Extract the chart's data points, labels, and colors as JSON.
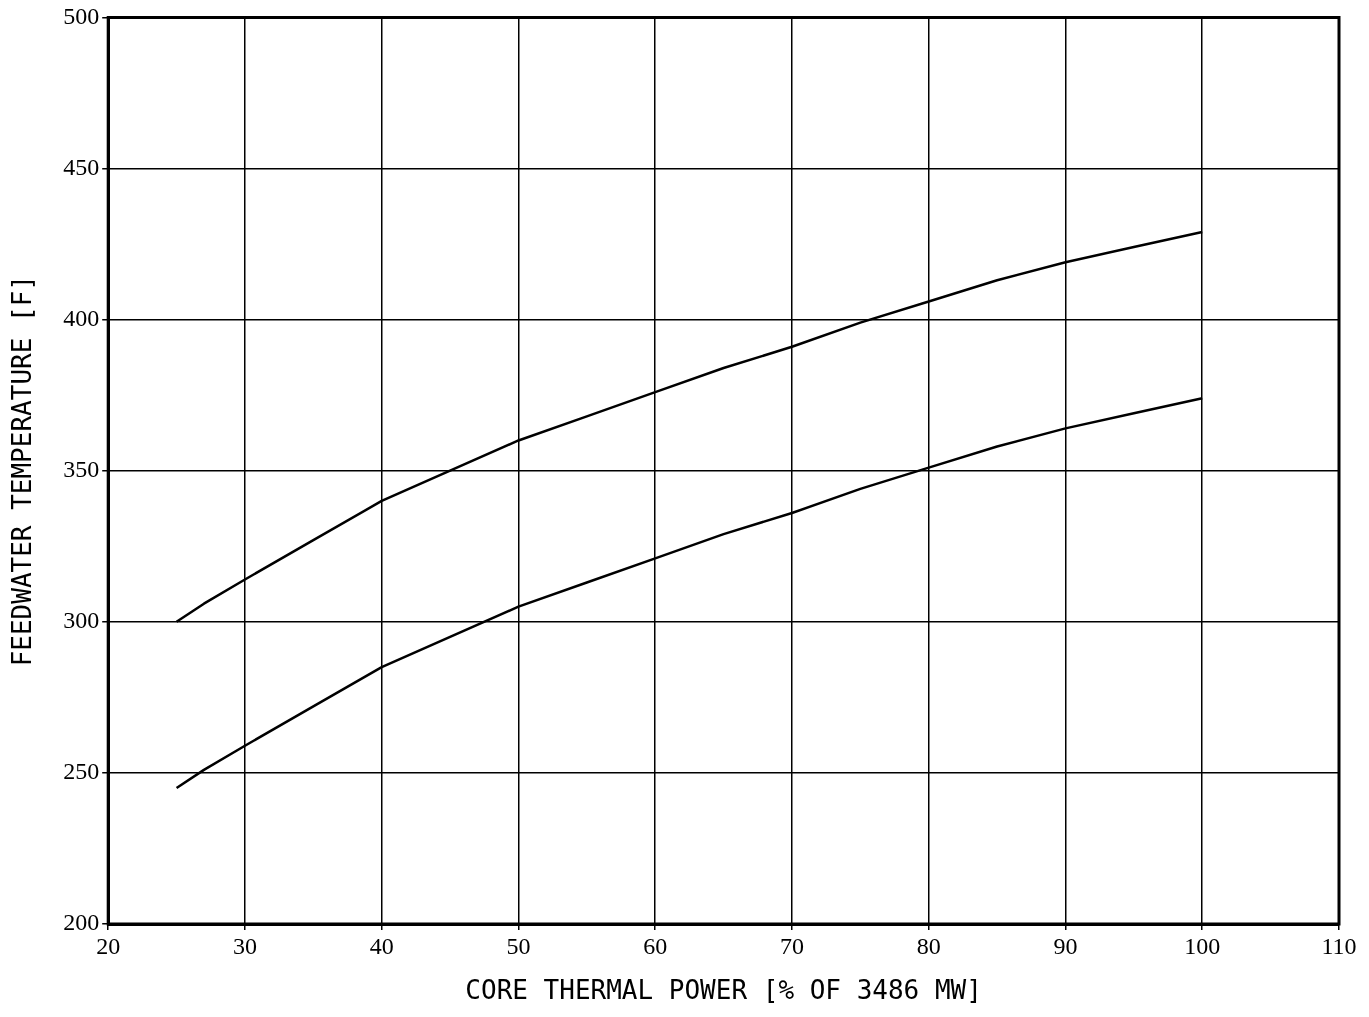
{
  "chart_data": {
    "type": "line",
    "xlabel": "CORE THERMAL POWER [% OF 3486 MW]",
    "ylabel": "FEEDWATER TEMPERATURE [F]",
    "xlim": [
      20,
      110
    ],
    "xticks": [
      20,
      30,
      40,
      50,
      60,
      70,
      80,
      90,
      100,
      110
    ],
    "ylim": [
      200,
      500
    ],
    "yticks": [
      200,
      250,
      300,
      350,
      400,
      450,
      500
    ],
    "grid": true,
    "legend": false,
    "marker": "none",
    "line_style": "solid",
    "series": [
      {
        "color": "#000000",
        "x": [
          25,
          27,
          30,
          35,
          40,
          45,
          50,
          55,
          60,
          65,
          70,
          75,
          80,
          85,
          90,
          95,
          100
        ],
        "values": [
          300,
          306,
          314,
          327,
          340,
          350,
          360,
          368,
          376,
          384,
          391,
          399,
          406,
          413,
          419,
          424,
          429
        ]
      },
      {
        "color": "#000000",
        "x": [
          25,
          27,
          30,
          35,
          40,
          45,
          50,
          55,
          60,
          65,
          70,
          75,
          80,
          85,
          90,
          95,
          100
        ],
        "values": [
          245,
          251,
          259,
          272,
          285,
          295,
          305,
          313,
          321,
          329,
          336,
          344,
          351,
          358,
          364,
          369,
          374
        ]
      }
    ]
  }
}
